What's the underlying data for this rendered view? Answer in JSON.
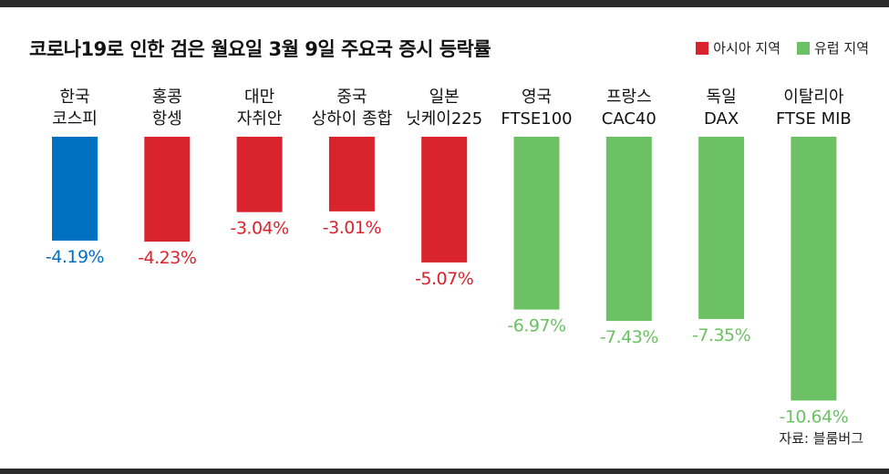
{
  "title": "코로나19로 인한 검은 월요일 3월 9일 주요국 증시 등락률",
  "legend": [
    {
      "label": "아시아 지역",
      "color": "#d9232d"
    },
    {
      "label": "유럽 지역",
      "color": "#6cc165"
    }
  ],
  "source": "자료: 블룸버그",
  "chart_data": {
    "type": "bar",
    "categories": [
      [
        "한국",
        "코스피"
      ],
      [
        "홍콩",
        "항셍"
      ],
      [
        "대만",
        "자취안"
      ],
      [
        "중국",
        "상하이 종합"
      ],
      [
        "일본",
        "닛케이225"
      ],
      [
        "영국",
        "FTSE100"
      ],
      [
        "프랑스",
        "CAC40"
      ],
      [
        "독일",
        "DAX"
      ],
      [
        "이탈리아",
        "FTSE MIB"
      ]
    ],
    "values": [
      -4.19,
      -4.23,
      -3.04,
      -3.01,
      -5.07,
      -6.97,
      -7.43,
      -7.35,
      -10.64
    ],
    "value_labels": [
      "-4.19%",
      "-4.23%",
      "-3.04%",
      "-3.01%",
      "-5.07%",
      "-6.97%",
      "-7.43%",
      "-7.35%",
      "-10.64%"
    ],
    "bar_colors": [
      "#0070c0",
      "#d9232d",
      "#d9232d",
      "#d9232d",
      "#d9232d",
      "#6cc165",
      "#6cc165",
      "#6cc165",
      "#6cc165"
    ],
    "label_colors": [
      "#0070c0",
      "#d9232d",
      "#d9232d",
      "#d9232d",
      "#d9232d",
      "#6cc165",
      "#6cc165",
      "#6cc165",
      "#6cc165"
    ],
    "ylim": [
      -10.64,
      0
    ]
  }
}
